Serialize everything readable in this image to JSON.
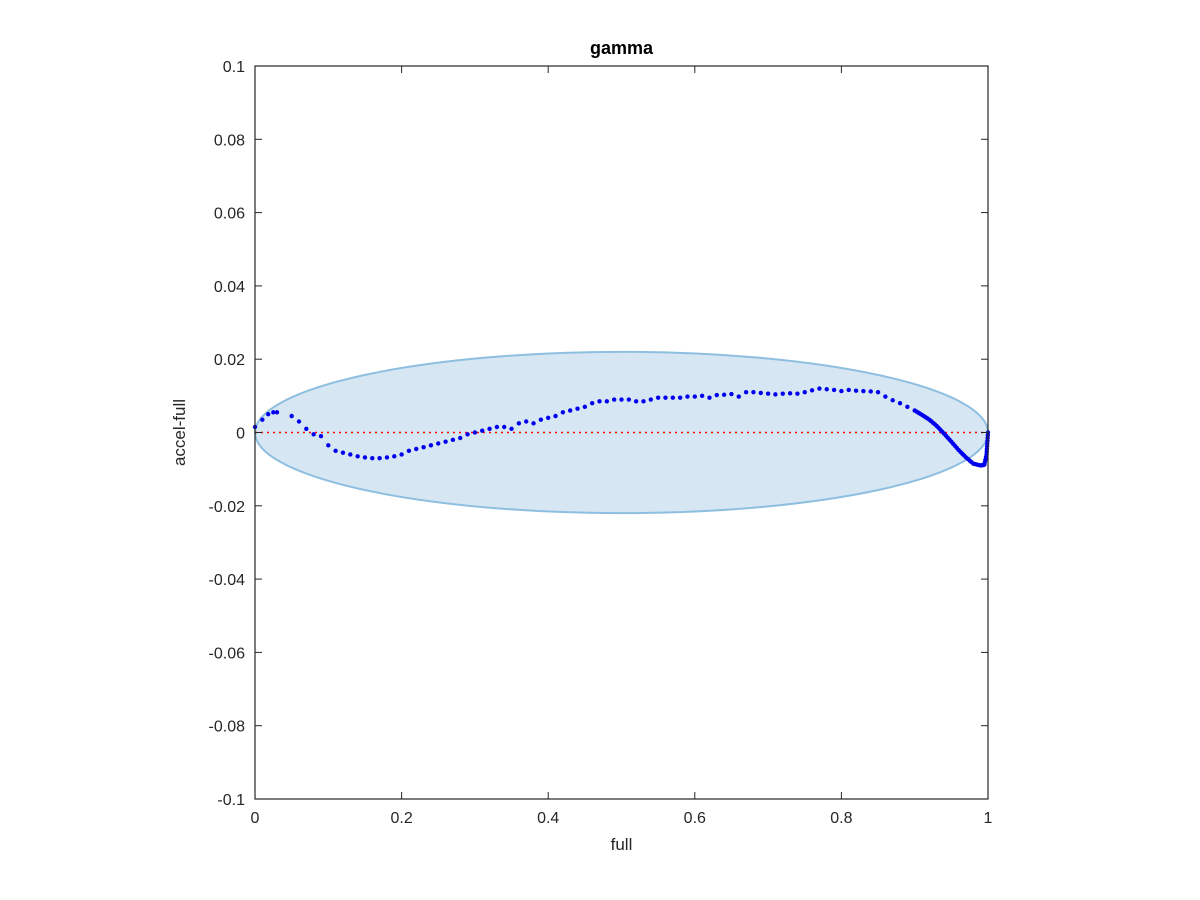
{
  "chart_data": {
    "type": "scatter",
    "title": "gamma",
    "xlabel": "full",
    "ylabel": "accel-full",
    "xlim": [
      0,
      1
    ],
    "ylim": [
      -0.1,
      0.1
    ],
    "xticks": [
      0,
      0.2,
      0.4,
      0.6,
      0.8,
      1
    ],
    "xtick_labels": [
      "0",
      "0.2",
      "0.4",
      "0.6",
      "0.8",
      "1"
    ],
    "yticks": [
      -0.1,
      -0.08,
      -0.06,
      -0.04,
      -0.02,
      0,
      0.02,
      0.04,
      0.06,
      0.08,
      0.1
    ],
    "ytick_labels": [
      "-0.1",
      "-0.08",
      "-0.06",
      "-0.04",
      "-0.02",
      "0",
      "0.02",
      "0.04",
      "0.06",
      "0.08",
      "0.1"
    ],
    "grid": false,
    "reference_line": {
      "y": 0,
      "color": "#ff0000",
      "style": "dotted"
    },
    "ellipse": {
      "cx": 0.5,
      "cy": 0,
      "rx": 0.5,
      "ry": 0.022,
      "fill": "#d6e6f3",
      "stroke": "#8fbfe0"
    },
    "series": [
      {
        "color": "#0000ee",
        "marker": "dot",
        "points": [
          [
            0.0,
            0.0015
          ],
          [
            0.01,
            0.0035
          ],
          [
            0.018,
            0.005
          ],
          [
            0.025,
            0.0055
          ],
          [
            0.03,
            0.0055
          ],
          [
            0.05,
            0.0045
          ],
          [
            0.06,
            0.003
          ],
          [
            0.07,
            0.001
          ],
          [
            0.08,
            -0.0005
          ],
          [
            0.09,
            -0.001
          ],
          [
            0.1,
            -0.0035
          ],
          [
            0.11,
            -0.005
          ],
          [
            0.12,
            -0.0055
          ],
          [
            0.13,
            -0.006
          ],
          [
            0.14,
            -0.0065
          ],
          [
            0.15,
            -0.0068
          ],
          [
            0.16,
            -0.007
          ],
          [
            0.17,
            -0.007
          ],
          [
            0.18,
            -0.0068
          ],
          [
            0.19,
            -0.0065
          ],
          [
            0.2,
            -0.006
          ],
          [
            0.21,
            -0.005
          ],
          [
            0.22,
            -0.0045
          ],
          [
            0.23,
            -0.004
          ],
          [
            0.24,
            -0.0035
          ],
          [
            0.25,
            -0.003
          ],
          [
            0.26,
            -0.0025
          ],
          [
            0.27,
            -0.002
          ],
          [
            0.28,
            -0.0015
          ],
          [
            0.29,
            -0.0005
          ],
          [
            0.3,
            0.0
          ],
          [
            0.31,
            0.0005
          ],
          [
            0.32,
            0.001
          ],
          [
            0.33,
            0.0015
          ],
          [
            0.34,
            0.0015
          ],
          [
            0.35,
            0.001
          ],
          [
            0.36,
            0.0025
          ],
          [
            0.37,
            0.003
          ],
          [
            0.38,
            0.0025
          ],
          [
            0.39,
            0.0035
          ],
          [
            0.4,
            0.004
          ],
          [
            0.41,
            0.0045
          ],
          [
            0.42,
            0.0055
          ],
          [
            0.43,
            0.006
          ],
          [
            0.44,
            0.0065
          ],
          [
            0.45,
            0.007
          ],
          [
            0.46,
            0.008
          ],
          [
            0.47,
            0.0085
          ],
          [
            0.48,
            0.0085
          ],
          [
            0.49,
            0.009
          ],
          [
            0.5,
            0.009
          ],
          [
            0.51,
            0.009
          ],
          [
            0.52,
            0.0085
          ],
          [
            0.53,
            0.0085
          ],
          [
            0.54,
            0.009
          ],
          [
            0.55,
            0.0095
          ],
          [
            0.56,
            0.0095
          ],
          [
            0.57,
            0.0095
          ],
          [
            0.58,
            0.0095
          ],
          [
            0.59,
            0.0098
          ],
          [
            0.6,
            0.0098
          ],
          [
            0.61,
            0.01
          ],
          [
            0.62,
            0.0095
          ],
          [
            0.63,
            0.0102
          ],
          [
            0.64,
            0.0103
          ],
          [
            0.65,
            0.0105
          ],
          [
            0.66,
            0.0098
          ],
          [
            0.67,
            0.011
          ],
          [
            0.68,
            0.011
          ],
          [
            0.69,
            0.0108
          ],
          [
            0.7,
            0.0106
          ],
          [
            0.71,
            0.0104
          ],
          [
            0.72,
            0.0106
          ],
          [
            0.73,
            0.0107
          ],
          [
            0.74,
            0.0106
          ],
          [
            0.75,
            0.011
          ],
          [
            0.76,
            0.0115
          ],
          [
            0.77,
            0.012
          ],
          [
            0.78,
            0.0118
          ],
          [
            0.79,
            0.0116
          ],
          [
            0.8,
            0.0113
          ],
          [
            0.81,
            0.0116
          ],
          [
            0.82,
            0.0114
          ],
          [
            0.83,
            0.0113
          ],
          [
            0.84,
            0.0112
          ],
          [
            0.85,
            0.011
          ],
          [
            0.86,
            0.0098
          ],
          [
            0.87,
            0.0088
          ],
          [
            0.88,
            0.008
          ],
          [
            0.89,
            0.007
          ],
          [
            0.9,
            0.006
          ],
          [
            0.91,
            0.0048
          ],
          [
            0.92,
            0.0035
          ],
          [
            0.93,
            0.0018
          ],
          [
            0.94,
            -0.0003
          ],
          [
            0.95,
            -0.0025
          ],
          [
            0.96,
            -0.0048
          ],
          [
            0.97,
            -0.0068
          ],
          [
            0.98,
            -0.0085
          ],
          [
            0.99,
            -0.009
          ],
          [
            0.995,
            -0.0088
          ],
          [
            0.998,
            -0.006
          ],
          [
            0.999,
            -0.003
          ],
          [
            1.0,
            0.0
          ]
        ]
      }
    ]
  }
}
